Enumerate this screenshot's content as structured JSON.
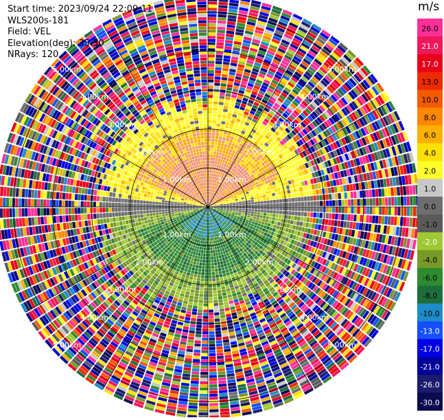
{
  "info": {
    "start_time": "Start time: 2023/09/24 22:09:11",
    "instrument": "WLS200s-181",
    "field": "Field: VEL",
    "elevation": "Elevation(deg): 35.30",
    "nrays": "NRays: 120"
  },
  "colorbar": {
    "unit": "m/s",
    "ticks": [
      "26.0",
      "21.0",
      "17.0",
      "13.0",
      "10.0",
      "8.0",
      "6.0",
      "4.0",
      "2.0",
      "1.0",
      "0.0",
      "-1.0",
      "-2.0",
      "-4.0",
      "-6.0",
      "-8.0",
      "-10.0",
      "-13.0",
      "-17.0",
      "-21.0",
      "-26.0",
      "-30.0"
    ],
    "colors": [
      "#ff2f9a",
      "#f0185a",
      "#e8001a",
      "#ee2a00",
      "#f45a00",
      "#ff8800",
      "#ffb000",
      "#ffe000",
      "#ffff2a",
      "#c8c8c8",
      "#6e6e6e",
      "#5a5a5a",
      "#a0c832",
      "#789a28",
      "#2e8b2e",
      "#1e6e3c",
      "#1e8cc8",
      "#1450ff",
      "#0000e6",
      "#00009a",
      "#1c1c6e",
      "#0a0a50"
    ]
  },
  "chart_data": {
    "type": "ppi",
    "field": "VEL",
    "unit": "m/s",
    "n_rays": 120,
    "elevation_deg": 35.3,
    "range_rings_km": [
      1.0,
      2.0,
      3.0,
      4.0,
      5.0
    ],
    "max_range_km": 5.4,
    "ring_labels": [
      "1.00km",
      "2.00km",
      "3.00km",
      "4.00km",
      "5.00km"
    ],
    "spokes_deg": [
      0,
      30,
      60,
      90,
      120,
      150,
      180,
      210,
      240,
      270,
      300,
      330
    ],
    "pattern": {
      "near_field_km": 2.6,
      "north_half": "positive velocities (1 to 6 m/s): yellow / orange, up to 6–8 m/s near center",
      "east_west_band": "near-zero velocities (gray)",
      "south_half": "negative velocities (-2 to -8 m/s): green, bluish near center",
      "far_field": "noisy values spanning full scale beyond ~2.6 km"
    }
  }
}
